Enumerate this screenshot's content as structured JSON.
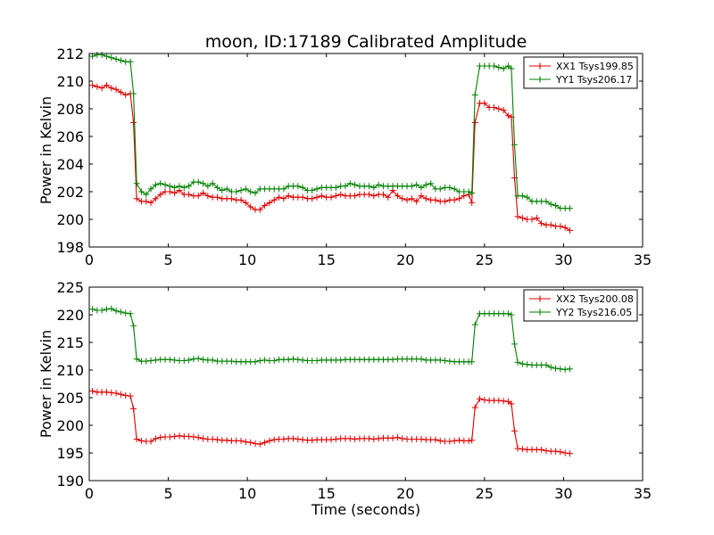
{
  "title": "moon, ID:17189 Calibrated Amplitude",
  "chart_data": [
    {
      "type": "line",
      "title": "moon, ID:17189 Calibrated Amplitude",
      "xlabel": "",
      "ylabel": "Power in Kelvin",
      "xlim": [
        0,
        35
      ],
      "ylim": [
        198,
        212
      ],
      "xticks": [
        "0",
        "5",
        "10",
        "15",
        "20",
        "25",
        "30",
        "35"
      ],
      "yticks": [
        "198",
        "200",
        "202",
        "204",
        "206",
        "208",
        "210",
        "212"
      ],
      "legend_position": "top-right",
      "grid": false,
      "x": [
        0.2,
        0.5,
        0.8,
        1.1,
        1.4,
        1.7,
        2.0,
        2.3,
        2.6,
        2.8,
        3.0,
        3.3,
        3.6,
        3.9,
        4.2,
        4.5,
        4.8,
        5.1,
        5.4,
        5.7,
        6.0,
        6.3,
        6.6,
        6.9,
        7.2,
        7.5,
        7.8,
        8.1,
        8.4,
        8.7,
        9.0,
        9.3,
        9.6,
        9.9,
        10.2,
        10.5,
        10.8,
        11.1,
        11.4,
        11.7,
        12.0,
        12.3,
        12.6,
        12.9,
        13.2,
        13.5,
        13.8,
        14.1,
        14.4,
        14.7,
        15.0,
        15.3,
        15.6,
        15.9,
        16.2,
        16.5,
        16.8,
        17.1,
        17.4,
        17.7,
        18.0,
        18.3,
        18.6,
        18.9,
        19.2,
        19.5,
        19.8,
        20.1,
        20.4,
        20.7,
        21.0,
        21.3,
        21.6,
        21.9,
        22.2,
        22.5,
        22.8,
        23.1,
        23.4,
        23.7,
        24.0,
        24.2,
        24.4,
        24.7,
        25.0,
        25.3,
        25.6,
        25.9,
        26.2,
        26.5,
        26.7,
        26.9,
        27.1,
        27.4,
        27.7,
        28.0,
        28.3,
        28.6,
        28.9,
        29.2,
        29.5,
        29.8,
        30.1,
        30.4
      ],
      "series": [
        {
          "name": "XX1 Tsys199.85",
          "color": "#dd0000",
          "values": [
            209.7,
            209.6,
            209.5,
            209.7,
            209.5,
            209.4,
            209.2,
            209.0,
            209.1,
            207.0,
            201.5,
            201.3,
            201.3,
            201.2,
            201.5,
            201.8,
            202.0,
            202.0,
            201.9,
            202.1,
            201.8,
            201.8,
            201.7,
            201.7,
            201.9,
            201.7,
            201.6,
            201.6,
            201.5,
            201.5,
            201.5,
            201.4,
            201.4,
            201.2,
            200.9,
            200.7,
            200.7,
            201.0,
            201.2,
            201.4,
            201.6,
            201.5,
            201.7,
            201.6,
            201.6,
            201.6,
            201.5,
            201.5,
            201.6,
            201.7,
            201.6,
            201.6,
            201.7,
            201.8,
            201.7,
            201.7,
            201.7,
            201.8,
            201.8,
            201.8,
            201.7,
            201.8,
            201.8,
            201.6,
            202.1,
            201.7,
            201.5,
            201.4,
            201.5,
            201.3,
            201.7,
            201.5,
            201.4,
            201.4,
            201.3,
            201.3,
            201.4,
            201.4,
            201.5,
            201.7,
            201.8,
            201.2,
            207.0,
            208.4,
            208.4,
            208.1,
            208.1,
            208.0,
            207.9,
            207.5,
            207.4,
            203.0,
            200.2,
            200.1,
            200.0,
            200.0,
            200.1,
            199.7,
            199.6,
            199.6,
            199.5,
            199.5,
            199.4,
            199.2
          ]
        },
        {
          "name": "YY1 Tsys206.17",
          "color": "#008000",
          "values": [
            211.8,
            211.9,
            211.9,
            211.8,
            211.7,
            211.6,
            211.5,
            211.4,
            211.4,
            209.1,
            202.6,
            202.0,
            201.8,
            202.2,
            202.5,
            202.6,
            202.5,
            202.4,
            202.3,
            202.4,
            202.3,
            202.4,
            202.7,
            202.7,
            202.6,
            202.4,
            202.6,
            202.3,
            202.1,
            202.2,
            202.0,
            202.0,
            202.1,
            202.2,
            202.0,
            201.9,
            202.2,
            202.2,
            202.2,
            202.2,
            202.2,
            202.2,
            202.4,
            202.4,
            202.4,
            202.3,
            202.1,
            202.1,
            202.2,
            202.3,
            202.3,
            202.3,
            202.3,
            202.4,
            202.4,
            202.6,
            202.5,
            202.4,
            202.4,
            202.4,
            202.3,
            202.5,
            202.4,
            202.4,
            202.4,
            202.4,
            202.4,
            202.4,
            202.4,
            202.5,
            202.3,
            202.5,
            202.6,
            202.2,
            202.2,
            202.3,
            202.3,
            202.2,
            202.0,
            202.0,
            202.0,
            201.9,
            209.0,
            211.1,
            211.1,
            211.1,
            211.1,
            211.0,
            210.9,
            211.1,
            210.9,
            205.4,
            201.7,
            201.7,
            201.6,
            201.3,
            201.3,
            201.3,
            201.3,
            201.1,
            201.0,
            200.8,
            200.8,
            200.8
          ]
        }
      ]
    },
    {
      "type": "line",
      "title": "",
      "xlabel": "Time (seconds)",
      "ylabel": "Power in Kelvin",
      "xlim": [
        0,
        35
      ],
      "ylim": [
        190,
        225
      ],
      "xticks": [
        "0",
        "5",
        "10",
        "15",
        "20",
        "25",
        "30",
        "35"
      ],
      "yticks": [
        "190",
        "195",
        "200",
        "205",
        "210",
        "215",
        "220",
        "225"
      ],
      "legend_position": "top-right",
      "grid": false,
      "x": [
        0.2,
        0.5,
        0.8,
        1.1,
        1.4,
        1.7,
        2.0,
        2.3,
        2.6,
        2.8,
        3.0,
        3.3,
        3.6,
        3.9,
        4.2,
        4.5,
        4.8,
        5.1,
        5.4,
        5.7,
        6.0,
        6.3,
        6.6,
        6.9,
        7.2,
        7.5,
        7.8,
        8.1,
        8.4,
        8.7,
        9.0,
        9.3,
        9.6,
        9.9,
        10.2,
        10.5,
        10.8,
        11.1,
        11.4,
        11.7,
        12.0,
        12.3,
        12.6,
        12.9,
        13.2,
        13.5,
        13.8,
        14.1,
        14.4,
        14.7,
        15.0,
        15.3,
        15.6,
        15.9,
        16.2,
        16.5,
        16.8,
        17.1,
        17.4,
        17.7,
        18.0,
        18.3,
        18.6,
        18.9,
        19.2,
        19.5,
        19.8,
        20.1,
        20.4,
        20.7,
        21.0,
        21.3,
        21.6,
        21.9,
        22.2,
        22.5,
        22.8,
        23.1,
        23.4,
        23.7,
        24.0,
        24.2,
        24.4,
        24.7,
        25.0,
        25.3,
        25.6,
        25.9,
        26.2,
        26.5,
        26.7,
        26.9,
        27.1,
        27.4,
        27.7,
        28.0,
        28.3,
        28.6,
        28.9,
        29.2,
        29.5,
        29.8,
        30.1,
        30.4
      ],
      "series": [
        {
          "name": "XX2 Tsys200.08",
          "color": "#dd0000",
          "values": [
            206.2,
            206.0,
            206.0,
            206.0,
            205.9,
            205.8,
            205.6,
            205.4,
            205.3,
            203.0,
            197.5,
            197.2,
            197.1,
            197.1,
            197.6,
            197.8,
            197.9,
            197.9,
            198.0,
            198.1,
            198.0,
            198.0,
            197.9,
            197.8,
            197.6,
            197.5,
            197.5,
            197.4,
            197.3,
            197.3,
            197.2,
            197.2,
            197.2,
            197.0,
            196.9,
            196.7,
            196.6,
            196.9,
            197.2,
            197.4,
            197.5,
            197.5,
            197.6,
            197.6,
            197.5,
            197.4,
            197.3,
            197.3,
            197.4,
            197.4,
            197.4,
            197.4,
            197.5,
            197.6,
            197.6,
            197.6,
            197.5,
            197.6,
            197.6,
            197.6,
            197.5,
            197.6,
            197.7,
            197.7,
            197.7,
            197.8,
            197.6,
            197.5,
            197.5,
            197.5,
            197.5,
            197.4,
            197.4,
            197.4,
            197.2,
            197.1,
            197.1,
            197.2,
            197.3,
            197.2,
            197.2,
            197.3,
            203.2,
            204.8,
            204.6,
            204.5,
            204.5,
            204.5,
            204.4,
            204.3,
            203.9,
            199.0,
            195.8,
            195.7,
            195.6,
            195.6,
            195.6,
            195.6,
            195.4,
            195.3,
            195.3,
            195.2,
            195.0,
            194.9
          ]
        },
        {
          "name": "YY2 Tsys216.05",
          "color": "#008000",
          "values": [
            221.0,
            220.8,
            220.8,
            221.0,
            221.1,
            220.7,
            220.5,
            220.3,
            220.2,
            218.0,
            212.0,
            211.6,
            211.6,
            211.7,
            211.8,
            211.9,
            211.9,
            211.9,
            211.8,
            211.7,
            211.7,
            211.8,
            212.0,
            212.1,
            211.9,
            211.8,
            211.8,
            211.6,
            211.6,
            211.6,
            211.6,
            211.5,
            211.5,
            211.5,
            211.5,
            211.5,
            211.7,
            211.8,
            211.7,
            211.7,
            211.9,
            211.9,
            211.9,
            212.0,
            211.9,
            211.8,
            211.7,
            211.7,
            211.7,
            211.8,
            211.8,
            211.8,
            211.8,
            211.8,
            211.9,
            211.9,
            211.9,
            211.9,
            211.9,
            211.9,
            211.9,
            211.9,
            211.9,
            211.9,
            211.9,
            212.0,
            212.0,
            212.0,
            212.0,
            212.0,
            212.0,
            211.8,
            211.8,
            211.8,
            211.8,
            211.7,
            211.6,
            211.5,
            211.5,
            211.5,
            211.5,
            211.5,
            218.2,
            220.2,
            220.2,
            220.2,
            220.2,
            220.2,
            220.2,
            220.2,
            220.0,
            214.7,
            211.4,
            211.1,
            211.0,
            210.9,
            210.9,
            210.9,
            210.9,
            210.5,
            210.3,
            210.2,
            210.1,
            210.2
          ]
        }
      ]
    }
  ]
}
